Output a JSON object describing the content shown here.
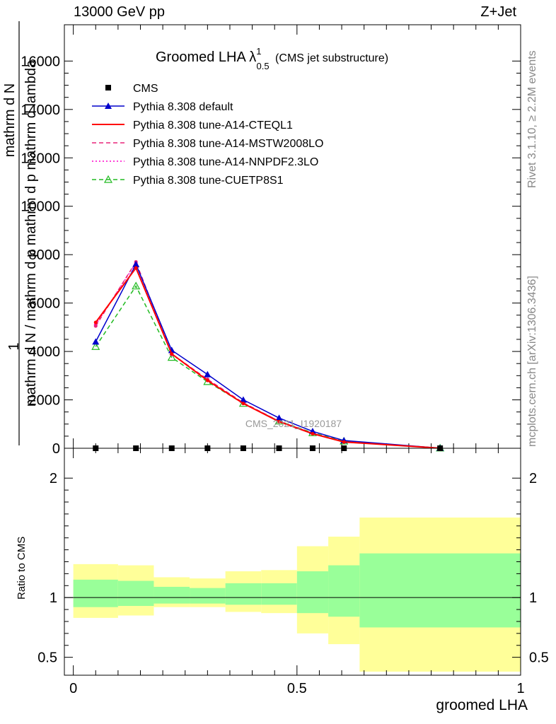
{
  "header": {
    "energy": "13000 GeV pp",
    "process": "Z+Jet"
  },
  "side_labels": {
    "rivet": "Rivet 3.1.10, ≥ 2.2M events",
    "mcplots": "mcplots.cern.ch [arXiv:1306.3436]"
  },
  "ratio_label": "Ratio to CMS",
  "x_label": "groomed LHA",
  "colors": {
    "cms": "#000000",
    "default": "#0000cc",
    "cteql1": "#ff0000",
    "mstw": "#e8257a",
    "nnpdf": "#ff00cc",
    "cuetp8s1": "#22bb22",
    "band_inner": "#99ff99",
    "band_outer": "#ffff99"
  },
  "chart_data": [
    {
      "type": "line",
      "title": "Groomed LHA",
      "title_lambda": "λ",
      "title_sup": "1",
      "title_sub": "0.5",
      "title_suffix": "(CMS jet substructure)",
      "ylabel_top": "1",
      "ylabel_num": "mathrm d N",
      "ylabel_den": "mathrm d N / mathrm d p mathrm d p mathrm d lambda",
      "watermark": "CMS_2021_I1920187",
      "xlim": [
        -0.02,
        1.0
      ],
      "ylim": [
        0,
        17500
      ],
      "yticks": [
        0,
        2000,
        4000,
        6000,
        8000,
        10000,
        12000,
        14000,
        16000
      ],
      "ytick_labels": [
        "0",
        "2000",
        "4000",
        "6000",
        "8000",
        "10000",
        "12000",
        "14000",
        "16000"
      ],
      "x": [
        0.05,
        0.14,
        0.22,
        0.3,
        0.38,
        0.46,
        0.535,
        0.605,
        0.82
      ],
      "series": [
        {
          "name": "CMS",
          "key": "cms",
          "marker": "square",
          "dash": "none",
          "values": [
            0,
            0,
            0,
            0,
            0,
            0,
            0,
            0,
            0
          ]
        },
        {
          "name": "Pythia 8.308 default",
          "key": "default",
          "marker": "triangle-filled",
          "dash": "none",
          "values": [
            4400,
            7600,
            4050,
            3050,
            2000,
            1250,
            700,
            320,
            5
          ]
        },
        {
          "name": "Pythia 8.308 tune-A14-CTEQL1",
          "key": "cteql1",
          "marker": "none",
          "dash": "none",
          "values": [
            5200,
            7450,
            3900,
            2800,
            1850,
            1100,
            600,
            260,
            5
          ]
        },
        {
          "name": "Pythia 8.308 tune-A14-MSTW2008LO",
          "key": "mstw",
          "marker": "none",
          "dash": "6,4",
          "values": [
            5050,
            7700,
            3900,
            2850,
            1880,
            1120,
            620,
            270,
            5
          ]
        },
        {
          "name": "Pythia 8.308 tune-A14-NNPDF2.3LO",
          "key": "nnpdf",
          "marker": "none",
          "dash": "2,3",
          "values": [
            5100,
            7650,
            3880,
            2830,
            1870,
            1110,
            610,
            265,
            5
          ]
        },
        {
          "name": "Pythia 8.308 tune-CUETP8S1",
          "key": "cuetp8s1",
          "marker": "triangle-open",
          "dash": "6,4",
          "values": [
            4200,
            6700,
            3750,
            2750,
            1850,
            1120,
            640,
            290,
            5
          ]
        }
      ]
    },
    {
      "type": "area",
      "ylabel": "Ratio to CMS",
      "xlabel": "groomed LHA",
      "xlim": [
        -0.02,
        1.0
      ],
      "ylim": [
        0.35,
        2.25
      ],
      "xticks": [
        0,
        0.5,
        1
      ],
      "xtick_labels": [
        "0",
        "0.5",
        "1"
      ],
      "yticks": [
        0.5,
        1,
        2
      ],
      "ytick_labels": [
        "0.5",
        "1",
        "2"
      ],
      "bins": [
        {
          "lo": 0.0,
          "hi": 0.1,
          "inner": [
            0.92,
            1.15
          ],
          "outer": [
            0.83,
            1.28
          ]
        },
        {
          "lo": 0.1,
          "hi": 0.18,
          "inner": [
            0.93,
            1.14
          ],
          "outer": [
            0.85,
            1.27
          ]
        },
        {
          "lo": 0.18,
          "hi": 0.26,
          "inner": [
            0.95,
            1.09
          ],
          "outer": [
            0.92,
            1.17
          ]
        },
        {
          "lo": 0.26,
          "hi": 0.34,
          "inner": [
            0.95,
            1.08
          ],
          "outer": [
            0.92,
            1.16
          ]
        },
        {
          "lo": 0.34,
          "hi": 0.42,
          "inner": [
            0.94,
            1.12
          ],
          "outer": [
            0.88,
            1.22
          ]
        },
        {
          "lo": 0.42,
          "hi": 0.5,
          "inner": [
            0.94,
            1.12
          ],
          "outer": [
            0.87,
            1.23
          ]
        },
        {
          "lo": 0.5,
          "hi": 0.57,
          "inner": [
            0.87,
            1.22
          ],
          "outer": [
            0.7,
            1.43
          ]
        },
        {
          "lo": 0.57,
          "hi": 0.64,
          "inner": [
            0.84,
            1.27
          ],
          "outer": [
            0.61,
            1.51
          ]
        },
        {
          "lo": 0.64,
          "hi": 1.0,
          "inner": [
            0.75,
            1.37
          ],
          "outer": [
            0.38,
            1.67
          ]
        }
      ]
    }
  ]
}
